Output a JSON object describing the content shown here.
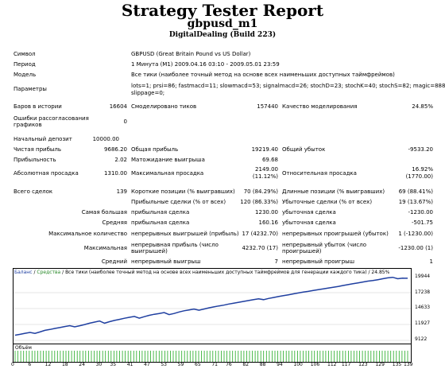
{
  "report": {
    "title": "Strategy Tester Report",
    "subtitle": "gbpusd_m1",
    "server": "DigitalDealing (Build 223)"
  },
  "rows": [
    {
      "y": 64,
      "label": "Символ",
      "value": "GBPUSD (Great Britain Pound vs US Dollar)"
    },
    {
      "y": 77,
      "label": "Период",
      "value": "1 Минута (M1) 2009.04.16 03:10 - 2009.05.01 23:59"
    },
    {
      "y": 90,
      "label": "Модель",
      "value": "Все тики (наиболее точный метод на основе всех наименьших доступных таймфреймов)"
    },
    {
      "y": 104,
      "label": "Параметры",
      "value": "lots=1; prsi=86; fastmacd=11; slowmacd=53; signalmacd=26; stochD=23; stochK=40; stochS=82; magic=888;"
    },
    {
      "y": 113,
      "label": "",
      "value": "slippage=0;"
    }
  ],
  "stats": {
    "bars_label": "Баров в истории",
    "bars": "16604",
    "ticks_label": "Смоделировано тиков",
    "ticks": "157440",
    "quality_label": "Качество моделирования",
    "quality": "24.85%",
    "errors_label1": "Ошибки рассогласования",
    "errors_label2": "графиков",
    "errors": "0",
    "deposit_label": "Начальный депозит",
    "deposit": "10000.00",
    "net_label": "Чистая прибыль",
    "net": "9686.20",
    "gross_profit_label": "Общая прибыль",
    "gross_profit": "19219.40",
    "gross_loss_label": "Общий убыток",
    "gross_loss": "-9533.20",
    "pf_label": "Прибыльность",
    "pf": "2.02",
    "payoff_label": "Матожидание выигрыша",
    "payoff": "69.68",
    "abs_dd_label": "Абсолютная просадка",
    "abs_dd": "1310.00",
    "max_dd_label": "Максимальная просадка",
    "max_dd": "2149.00",
    "max_dd_pct": "(11.12%)",
    "rel_dd_label": "Относительная просадка",
    "rel_dd": "16.92%",
    "rel_dd_val": "(1770.00)",
    "total_label": "Всего сделок",
    "total": "139",
    "short_label": "Короткие позиции (% выигравших)",
    "short": "70 (84.29%)",
    "long_label": "Длинные позиции (% выигравших)",
    "long": "69 (88.41%)",
    "profit_trades_label": "Прибыльные сделки (% от всех)",
    "profit_trades": "120 (86.33%)",
    "loss_trades_label": "Убыточные сделки (% от всех)",
    "loss_trades": "19 (13.67%)",
    "largest_label": "Самая большая",
    "largest_profit_label": "прибыльная сделка",
    "largest_profit": "1230.00",
    "largest_loss_label": "убыточная сделка",
    "largest_loss": "-1230.00",
    "average_label": "Средняя",
    "average_profit_label": "прибыльная сделка",
    "average_profit": "160.16",
    "average_loss_label": "убыточная сделка",
    "average_loss": "-501.75",
    "maxcount_label": "Максимальное количество",
    "cons_wins_label": "непрерывных выигрышей (прибыль)",
    "cons_wins": "17 (4232.70)",
    "cons_losses_label": "непрерывных проигрышей (убыток)",
    "cons_losses": "1 (-1230.00)",
    "maximal_label": "Максимальная",
    "max_profit_label1": "непрерывная прибыль (число",
    "max_profit_label2": "выигрышей)",
    "max_profit": "4232.70 (17)",
    "max_loss_label1": "непрерывный убыток (число",
    "max_loss_label2": "проигрышей)",
    "max_loss": "-1230.00 (1)",
    "avg_label": "Средний",
    "avg_wins_label": "непрерывный выигрыш",
    "avg_wins": "7",
    "avg_losses_label": "непрерывный проигрыш",
    "avg_losses": "1"
  },
  "chart_data": {
    "type": "line",
    "legend_balance": "Баланс",
    "legend_sep": " / ",
    "legend_equity": "Средства",
    "legend_rest": " / Все тики (наиболее точный метод на основе всех наименьших доступных таймфреймов для генерации каждого тика) / 24.85%",
    "y_ticks": [
      "19944",
      "17238",
      "14633",
      "11927",
      "9122"
    ],
    "ylim": [
      9122,
      19944
    ],
    "x_ticks": [
      "0",
      "6",
      "12",
      "18",
      "24",
      "30",
      "35",
      "41",
      "47",
      "53",
      "59",
      "65",
      "71",
      "76",
      "82",
      "88",
      "94",
      "100",
      "106",
      "112",
      "117",
      "123",
      "129",
      "135",
      "139"
    ],
    "volume_label": "Объём",
    "balance": [
      10000,
      10150,
      10320,
      10480,
      10310,
      10560,
      10820,
      10980,
      11150,
      11300,
      11480,
      11620,
      11420,
      11610,
      11820,
      12050,
      12230,
      12410,
      12050,
      12300,
      12520,
      12700,
      12880,
      13050,
      13200,
      12900,
      13150,
      13380,
      13560,
      13700,
      13850,
      13500,
      13700,
      13950,
      14150,
      14300,
      14450,
      14250,
      14450,
      14650,
      14820,
      14980,
      15120,
      15300,
      15450,
      15600,
      15750,
      15900,
      16050,
      16200,
      16050,
      16250,
      16420,
      16580,
      16730,
      16880,
      17030,
      17180,
      17330,
      17450,
      17600,
      17750,
      17880,
      18020,
      18160,
      18300,
      18450,
      18600,
      18750,
      18900,
      19050,
      19200,
      19300,
      19450,
      19600,
      19750,
      19850,
      19600,
      19700,
      19686
    ]
  }
}
